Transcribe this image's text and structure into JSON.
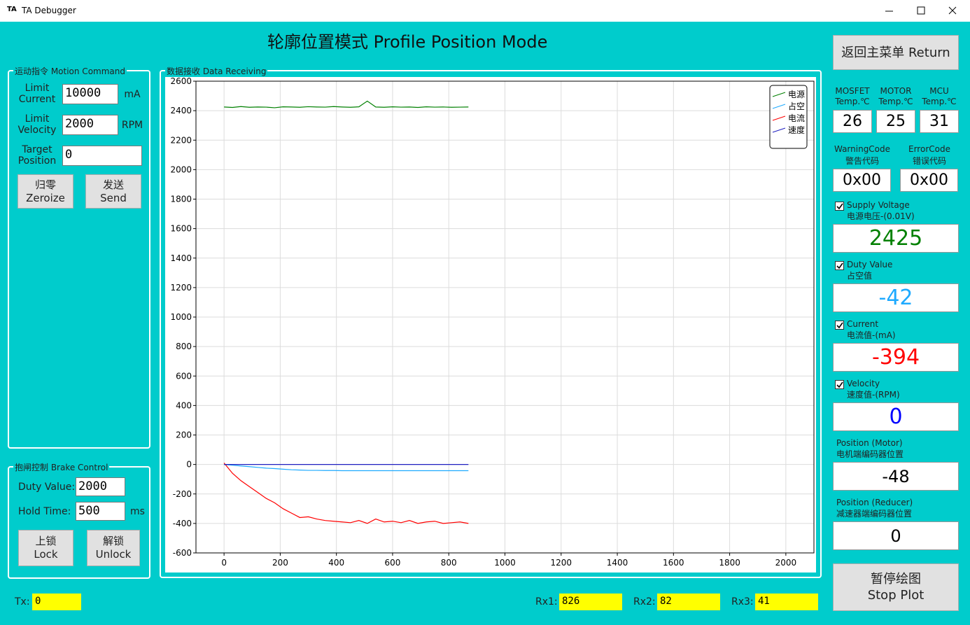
{
  "window": {
    "icon": "TA",
    "title": "TA Debugger"
  },
  "header": {
    "title": "轮廓位置模式 Profile Position Mode",
    "return_button": "返回主菜单 Return"
  },
  "motion_command": {
    "title": "运动指令 Motion Command",
    "limit_current": {
      "label": "Limit\nCurrent",
      "value": "10000",
      "unit": "mA"
    },
    "limit_velocity": {
      "label": "Limit\nVelocity",
      "value": "2000",
      "unit": "RPM"
    },
    "target_position": {
      "label": "Target\nPosition",
      "value": "0"
    },
    "zeroize_button": "归零\nZeroize",
    "send_button": "发送\nSend"
  },
  "brake_control": {
    "title": "抱闸控制 Brake Control",
    "duty_value": {
      "label": "Duty Value:",
      "value": "2000"
    },
    "hold_time": {
      "label": "Hold  Time:",
      "value": "500",
      "unit": "ms"
    },
    "lock_button": "上锁\nLock",
    "unlock_button": "解锁\nUnlock"
  },
  "chart_data": {
    "type": "line",
    "title": "数据接收 Data Receiving",
    "x": [
      0,
      30,
      60,
      90,
      120,
      150,
      180,
      210,
      240,
      270,
      300,
      330,
      360,
      390,
      420,
      450,
      480,
      510,
      540,
      570,
      600,
      630,
      660,
      690,
      720,
      750,
      780,
      810,
      840,
      870
    ],
    "series": [
      {
        "name": "电源",
        "color": "#008000",
        "values": [
          2425,
          2422,
          2428,
          2423,
          2425,
          2424,
          2420,
          2426,
          2425,
          2423,
          2427,
          2425,
          2424,
          2428,
          2425,
          2423,
          2426,
          2465,
          2425,
          2423,
          2426,
          2424,
          2425,
          2422,
          2426,
          2424,
          2425,
          2423,
          2424,
          2425
        ]
      },
      {
        "name": "占空",
        "color": "#1eaaff",
        "values": [
          0,
          -5,
          -10,
          -15,
          -20,
          -25,
          -28,
          -32,
          -36,
          -38,
          -40,
          -40,
          -41,
          -41,
          -42,
          -42,
          -42,
          -42,
          -42,
          -42,
          -42,
          -42,
          -42,
          -42,
          -42,
          -42,
          -42,
          -42,
          -42,
          -42
        ]
      },
      {
        "name": "电流",
        "color": "#ff0000",
        "values": [
          10,
          -60,
          -110,
          -150,
          -190,
          -230,
          -260,
          -300,
          -330,
          -360,
          -355,
          -370,
          -380,
          -385,
          -390,
          -395,
          -380,
          -400,
          -370,
          -390,
          -385,
          -395,
          -380,
          -400,
          -390,
          -385,
          -400,
          -395,
          -390,
          -400
        ]
      },
      {
        "name": "速度",
        "color": "#2020c0",
        "values": [
          0,
          0,
          0,
          0,
          0,
          0,
          0,
          0,
          0,
          0,
          0,
          0,
          0,
          0,
          0,
          0,
          0,
          0,
          0,
          0,
          0,
          0,
          0,
          0,
          0,
          0,
          0,
          0,
          0,
          0
        ]
      }
    ],
    "xlim": [
      -100,
      2100
    ],
    "ylim": [
      -600,
      2600
    ],
    "xticks": [
      0,
      200,
      400,
      600,
      800,
      1000,
      1200,
      1400,
      1600,
      1800,
      2000
    ],
    "yticks": [
      -600,
      -400,
      -200,
      0,
      200,
      400,
      600,
      800,
      1000,
      1200,
      1400,
      1600,
      1800,
      2000,
      2200,
      2400,
      2600
    ],
    "grid": true,
    "legend": "upper right"
  },
  "status": {
    "temps": [
      {
        "label": "MOSFET\nTemp.℃",
        "value": "26"
      },
      {
        "label": "MOTOR\nTemp.℃",
        "value": "25"
      },
      {
        "label": "MCU\nTemp.℃",
        "value": "31"
      }
    ],
    "codes": [
      {
        "label": "WarningCode\n警告代码",
        "value": "0x00"
      },
      {
        "label": "ErrorCode\n错误代码",
        "value": "0x00"
      }
    ],
    "readouts": [
      {
        "label": "Supply Voltage\n电源电压-(0.01V)",
        "value": "2425",
        "color": "#008000",
        "checked": true
      },
      {
        "label": "Duty Value\n占空值",
        "value": "-42",
        "color": "#1eaaff",
        "checked": true
      },
      {
        "label": "Current\n电流值-(mA)",
        "value": "-394",
        "color": "#ff0000",
        "checked": true
      },
      {
        "label": "Velocity\n速度值-(RPM)",
        "value": "0",
        "color": "#0000ff",
        "checked": true
      },
      {
        "label": "Position (Motor)\n电机端编码器位置",
        "value": "-48",
        "color": "#000000"
      },
      {
        "label": "Position (Reducer)\n减速器端编码器位置",
        "value": "0",
        "color": "#000000"
      }
    ],
    "stop_button": "暂停绘图\nStop Plot"
  },
  "footer": {
    "tx": {
      "label": "Tx:",
      "value": "0"
    },
    "rx1": {
      "label": "Rx1:",
      "value": "826"
    },
    "rx2": {
      "label": "Rx2:",
      "value": "82"
    },
    "rx3": {
      "label": "Rx3:",
      "value": "41"
    }
  }
}
